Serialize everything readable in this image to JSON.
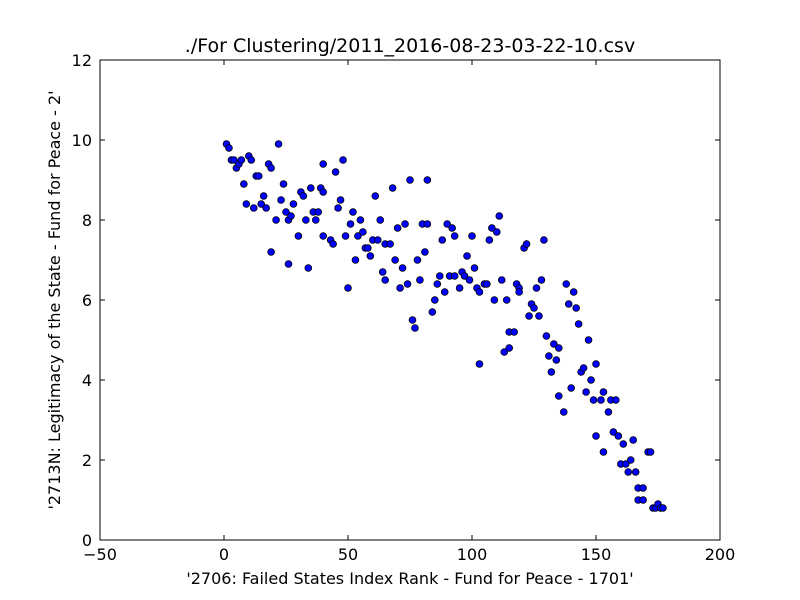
{
  "chart_data": {
    "type": "scatter",
    "title": "./For Clustering/2011_2016-08-23-03-22-10.csv",
    "xlabel": "'2706: Failed States Index Rank - Fund for Peace - 1701'",
    "ylabel": "'2713N: Legitimacy of the State - Fund for Peace - 2'",
    "xlim": [
      -50,
      200
    ],
    "ylim": [
      0,
      12
    ],
    "xticks": [
      -50,
      0,
      50,
      100,
      150,
      200
    ],
    "yticks": [
      0,
      2,
      4,
      6,
      8,
      10,
      12
    ],
    "xtick_labels": [
      "−50",
      "0",
      "50",
      "100",
      "150",
      "200"
    ],
    "ytick_labels": [
      "0",
      "2",
      "4",
      "6",
      "8",
      "10",
      "12"
    ],
    "grid": false,
    "legend": "none",
    "marker_color": "#0000ff",
    "marker_edge_color": "#000000",
    "points": [
      [
        1,
        9.9
      ],
      [
        2,
        9.8
      ],
      [
        3,
        9.5
      ],
      [
        4,
        9.5
      ],
      [
        5,
        9.3
      ],
      [
        6,
        9.4
      ],
      [
        7,
        9.5
      ],
      [
        8,
        8.9
      ],
      [
        9,
        8.4
      ],
      [
        10,
        9.6
      ],
      [
        11,
        9.5
      ],
      [
        12,
        8.3
      ],
      [
        13,
        9.1
      ],
      [
        14,
        9.1
      ],
      [
        15,
        8.4
      ],
      [
        16,
        8.6
      ],
      [
        17,
        8.3
      ],
      [
        18,
        9.4
      ],
      [
        19,
        9.3
      ],
      [
        19,
        7.2
      ],
      [
        21,
        8.0
      ],
      [
        22,
        9.9
      ],
      [
        23,
        8.5
      ],
      [
        24,
        8.9
      ],
      [
        25,
        8.2
      ],
      [
        26,
        8.0
      ],
      [
        26,
        6.9
      ],
      [
        27,
        8.1
      ],
      [
        28,
        8.4
      ],
      [
        30,
        7.6
      ],
      [
        31,
        8.7
      ],
      [
        32,
        8.6
      ],
      [
        33,
        8.0
      ],
      [
        34,
        6.8
      ],
      [
        35,
        8.8
      ],
      [
        36,
        8.2
      ],
      [
        37,
        8.0
      ],
      [
        38,
        8.2
      ],
      [
        39,
        8.8
      ],
      [
        40,
        8.7
      ],
      [
        40,
        9.4
      ],
      [
        40,
        7.6
      ],
      [
        43,
        7.5
      ],
      [
        44,
        7.4
      ],
      [
        45,
        9.2
      ],
      [
        46,
        8.3
      ],
      [
        47,
        8.5
      ],
      [
        48,
        9.5
      ],
      [
        49,
        7.6
      ],
      [
        50,
        6.3
      ],
      [
        51,
        7.9
      ],
      [
        52,
        8.2
      ],
      [
        53,
        7.0
      ],
      [
        54,
        7.6
      ],
      [
        55,
        8.0
      ],
      [
        56,
        7.7
      ],
      [
        57,
        7.3
      ],
      [
        58,
        7.3
      ],
      [
        59,
        7.1
      ],
      [
        60,
        7.5
      ],
      [
        61,
        8.6
      ],
      [
        62,
        7.5
      ],
      [
        63,
        8.0
      ],
      [
        64,
        6.7
      ],
      [
        65,
        7.4
      ],
      [
        65,
        6.5
      ],
      [
        67,
        7.4
      ],
      [
        68,
        8.8
      ],
      [
        69,
        7.0
      ],
      [
        70,
        7.8
      ],
      [
        71,
        6.3
      ],
      [
        72,
        6.8
      ],
      [
        73,
        7.9
      ],
      [
        74,
        6.4
      ],
      [
        75,
        9.0
      ],
      [
        76,
        5.5
      ],
      [
        77,
        5.3
      ],
      [
        78,
        7.0
      ],
      [
        79,
        6.5
      ],
      [
        80,
        7.9
      ],
      [
        81,
        7.2
      ],
      [
        82,
        9.0
      ],
      [
        82,
        7.9
      ],
      [
        84,
        5.7
      ],
      [
        85,
        6.0
      ],
      [
        86,
        6.4
      ],
      [
        87,
        6.6
      ],
      [
        88,
        7.5
      ],
      [
        89,
        6.2
      ],
      [
        90,
        7.9
      ],
      [
        91,
        6.6
      ],
      [
        92,
        7.8
      ],
      [
        93,
        7.6
      ],
      [
        93,
        6.6
      ],
      [
        95,
        6.3
      ],
      [
        96,
        6.7
      ],
      [
        97,
        6.6
      ],
      [
        98,
        7.1
      ],
      [
        99,
        6.5
      ],
      [
        100,
        7.6
      ],
      [
        101,
        6.8
      ],
      [
        102,
        6.3
      ],
      [
        103,
        6.2
      ],
      [
        103,
        4.4
      ],
      [
        105,
        6.4
      ],
      [
        106,
        6.4
      ],
      [
        107,
        7.5
      ],
      [
        108,
        7.8
      ],
      [
        109,
        6.0
      ],
      [
        110,
        7.7
      ],
      [
        111,
        8.1
      ],
      [
        112,
        6.5
      ],
      [
        113,
        4.7
      ],
      [
        114,
        6.0
      ],
      [
        115,
        4.8
      ],
      [
        115,
        5.2
      ],
      [
        117,
        5.2
      ],
      [
        118,
        6.4
      ],
      [
        119,
        6.3
      ],
      [
        119,
        6.2
      ],
      [
        121,
        7.3
      ],
      [
        122,
        7.4
      ],
      [
        123,
        5.6
      ],
      [
        124,
        5.9
      ],
      [
        125,
        5.8
      ],
      [
        126,
        6.3
      ],
      [
        127,
        5.6
      ],
      [
        128,
        6.5
      ],
      [
        129,
        7.5
      ],
      [
        130,
        5.1
      ],
      [
        131,
        4.6
      ],
      [
        132,
        4.2
      ],
      [
        133,
        4.9
      ],
      [
        134,
        4.5
      ],
      [
        135,
        4.8
      ],
      [
        135,
        3.6
      ],
      [
        137,
        3.2
      ],
      [
        138,
        6.4
      ],
      [
        139,
        5.9
      ],
      [
        140,
        3.8
      ],
      [
        141,
        6.2
      ],
      [
        142,
        5.8
      ],
      [
        143,
        5.4
      ],
      [
        144,
        4.2
      ],
      [
        145,
        4.3
      ],
      [
        146,
        3.7
      ],
      [
        147,
        5.0
      ],
      [
        148,
        4.0
      ],
      [
        149,
        3.5
      ],
      [
        150,
        4.4
      ],
      [
        150,
        2.6
      ],
      [
        152,
        3.5
      ],
      [
        153,
        3.7
      ],
      [
        153,
        2.2
      ],
      [
        155,
        3.2
      ],
      [
        156,
        3.5
      ],
      [
        157,
        2.7
      ],
      [
        158,
        3.5
      ],
      [
        159,
        2.6
      ],
      [
        160,
        1.9
      ],
      [
        161,
        2.4
      ],
      [
        162,
        1.9
      ],
      [
        163,
        1.7
      ],
      [
        164,
        2.0
      ],
      [
        165,
        2.5
      ],
      [
        166,
        1.7
      ],
      [
        167,
        1.3
      ],
      [
        167,
        1.0
      ],
      [
        169,
        1.3
      ],
      [
        169,
        1.0
      ],
      [
        171,
        2.2
      ],
      [
        172,
        2.2
      ],
      [
        173,
        0.8
      ],
      [
        174,
        0.8
      ],
      [
        175,
        0.9
      ],
      [
        176,
        0.8
      ],
      [
        177,
        0.8
      ]
    ]
  }
}
